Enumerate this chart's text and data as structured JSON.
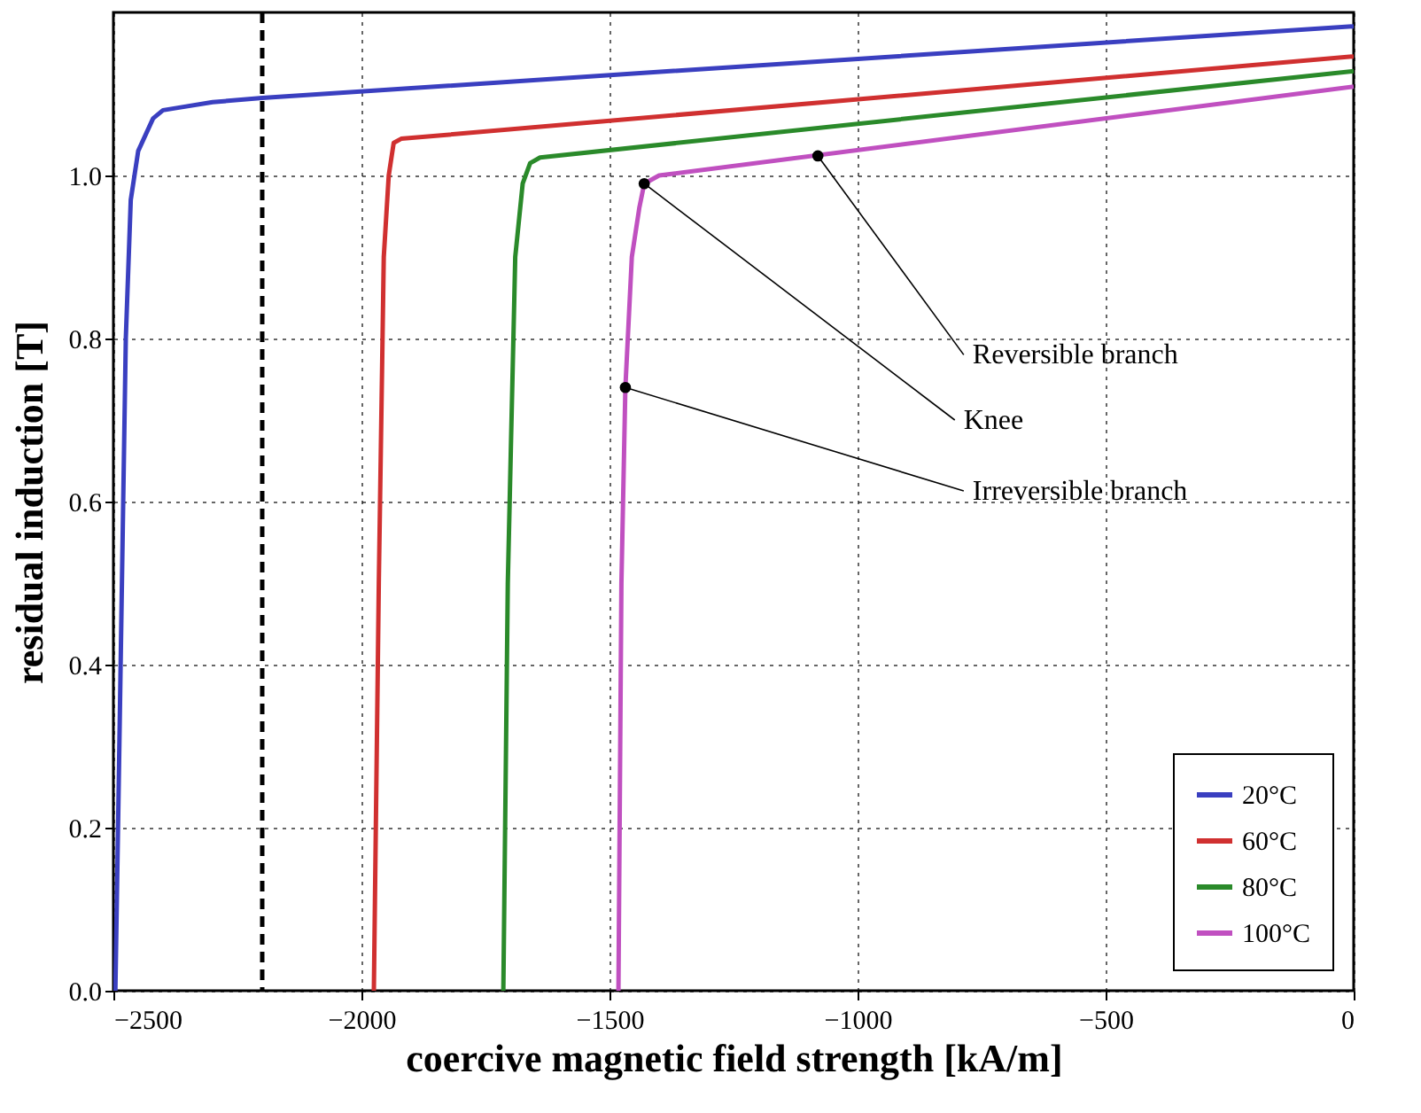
{
  "chart_data": {
    "type": "line",
    "xlabel": "coercive magnetic field strength [kA/m]",
    "ylabel": "residual induction [T]",
    "xlim": [
      -2500,
      0
    ],
    "ylim": [
      0,
      1.2
    ],
    "xticks": [
      -2500,
      -2000,
      -1500,
      -1000,
      -500,
      0
    ],
    "yticks": [
      {
        "value": 0,
        "label": "0.0"
      },
      {
        "value": 0.2,
        "label": "0.2"
      },
      {
        "value": 0.4,
        "label": "0.4"
      },
      {
        "value": 0.6,
        "label": "0.6"
      },
      {
        "value": 0.8,
        "label": "0.8"
      },
      {
        "value": 1,
        "label": "1.0"
      }
    ],
    "grid": true,
    "legend": "bottom right",
    "marker": "none",
    "line_style": "solid",
    "series": [
      {
        "name": "20°C",
        "color": "#3a3fc0",
        "x": [
          -2496,
          -2488,
          -2475,
          -2465,
          -2450,
          -2420,
          -2400,
          -2370,
          -2300,
          -2200,
          0
        ],
        "values": [
          0,
          0.3,
          0.8,
          0.97,
          1.03,
          1.07,
          1.08,
          1.083,
          1.09,
          1.095,
          1.183
        ]
      },
      {
        "name": "60°C",
        "color": "#d03030",
        "x": [
          -1975,
          -1965,
          -1955,
          -1945,
          -1935,
          -1920,
          0
        ],
        "values": [
          0,
          0.5,
          0.9,
          1.0,
          1.04,
          1.045,
          1.146
        ]
      },
      {
        "name": "80°C",
        "color": "#2a8a2a",
        "x": [
          -1714,
          -1705,
          -1690,
          -1675,
          -1660,
          -1640,
          0
        ],
        "values": [
          0,
          0.5,
          0.9,
          0.99,
          1.015,
          1.022,
          1.128
        ]
      },
      {
        "name": "100°C",
        "color": "#c050c0",
        "x": [
          -1482,
          -1476,
          -1468,
          -1455,
          -1440,
          -1430,
          -1400,
          0
        ],
        "values": [
          0,
          0.5,
          0.74,
          0.9,
          0.96,
          0.99,
          1.0,
          1.109
        ]
      }
    ],
    "ref_lines": [
      {
        "axis": "x",
        "value": -2200,
        "color": "#000000",
        "line_style": "dashed"
      }
    ],
    "annotations": [
      {
        "text": "Reversible branch",
        "x": -1080,
        "y": 1.024
      },
      {
        "text": "Knee",
        "x": -1430,
        "y": 0.99
      },
      {
        "text": "Irreversible branch",
        "x": -1468,
        "y": 0.74
      }
    ]
  }
}
